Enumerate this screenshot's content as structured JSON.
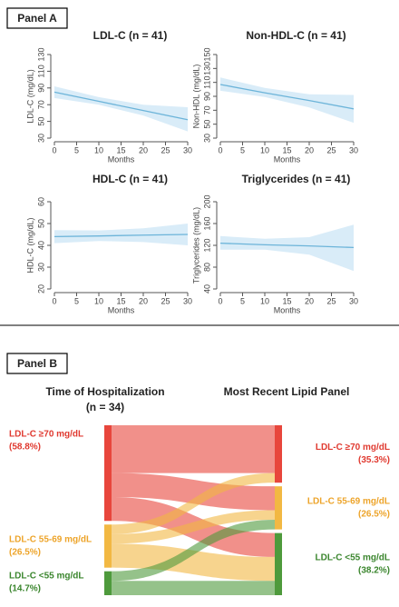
{
  "panels": [
    "Panel A",
    "Panel B"
  ],
  "chart_data": [
    {
      "type": "line",
      "title": "LDL-C (n = 41)",
      "x_label": "Months",
      "y_label": "LDL-C (mg/dL)",
      "x": [
        0,
        10,
        20,
        30
      ],
      "values": [
        85,
        74,
        63,
        52
      ],
      "lower": [
        78,
        70,
        57,
        38
      ],
      "upper": [
        92,
        79,
        70,
        67
      ],
      "xlim": [
        0,
        30
      ],
      "xticks": [
        0,
        5,
        10,
        15,
        20,
        25,
        30
      ],
      "ylim": [
        30,
        130
      ],
      "yticks": [
        30,
        50,
        70,
        90,
        110,
        130
      ],
      "color": "#6cb4d9",
      "band_color": "#d9ecf8"
    },
    {
      "type": "line",
      "title": "Non-HDL-C (n = 41)",
      "x_label": "Months",
      "y_label": "Non-HDL (mg/dL)",
      "x": [
        0,
        10,
        20,
        30
      ],
      "values": [
        107,
        95,
        84,
        72
      ],
      "lower": [
        98,
        89,
        74,
        52
      ],
      "upper": [
        117,
        102,
        93,
        92
      ],
      "xlim": [
        0,
        30
      ],
      "xticks": [
        0,
        5,
        10,
        15,
        20,
        25,
        30
      ],
      "ylim": [
        30,
        150
      ],
      "yticks": [
        30,
        50,
        70,
        90,
        110,
        130,
        150
      ],
      "color": "#6cb4d9",
      "band_color": "#d9ecf8"
    },
    {
      "type": "line",
      "title": "HDL-C (n = 41)",
      "x_label": "Months",
      "y_label": "HDL-C (mg/dL)",
      "x": [
        0,
        10,
        20,
        30
      ],
      "values": [
        44,
        44.3,
        44.7,
        45
      ],
      "lower": [
        41,
        42,
        41.5,
        40
      ],
      "upper": [
        47,
        46.8,
        47.8,
        50
      ],
      "xlim": [
        0,
        30
      ],
      "xticks": [
        0,
        5,
        10,
        15,
        20,
        25,
        30
      ],
      "ylim": [
        20,
        60
      ],
      "yticks": [
        20,
        30,
        40,
        50,
        60
      ],
      "color": "#6cb4d9",
      "band_color": "#d9ecf8"
    },
    {
      "type": "line",
      "title": "Triglycerides (n = 41)",
      "x_label": "Months",
      "y_label": "Triglycerides (mg/dL)",
      "x": [
        0,
        10,
        20,
        30
      ],
      "values": [
        124,
        121,
        119,
        116
      ],
      "lower": [
        112,
        112,
        103,
        73
      ],
      "upper": [
        137,
        132,
        135,
        158
      ],
      "xlim": [
        0,
        30
      ],
      "xticks": [
        0,
        5,
        10,
        15,
        20,
        25,
        30
      ],
      "ylim": [
        40,
        200
      ],
      "yticks": [
        40,
        80,
        120,
        160,
        200
      ],
      "color": "#6cb4d9",
      "band_color": "#d9ecf8"
    },
    {
      "type": "sankey",
      "left_title": "Time of Hospitalization",
      "left_subtitle": "(n = 34)",
      "right_title": "Most Recent Lipid Panel",
      "left_nodes": {
        "labels": [
          "LDL-C ≥70 mg/dL",
          "LDL-C 55-69 mg/dL",
          "LDL-C <55 mg/dL"
        ],
        "values": [
          58.8,
          26.5,
          14.7
        ],
        "value_labels": [
          "(58.8%)",
          "(26.5%)",
          "(14.7%)"
        ],
        "colors": [
          "#e8463c",
          "#f2b843",
          "#4e9a3c"
        ]
      },
      "right_nodes": {
        "labels": [
          "LDL-C ≥70 mg/dL",
          "LDL-C 55-69 mg/dL",
          "LDL-C <55 mg/dL"
        ],
        "values": [
          35.3,
          26.5,
          38.2
        ],
        "value_labels": [
          "(35.3%)",
          "(26.5%)",
          "(38.2%)"
        ],
        "colors": [
          "#e8463c",
          "#f2b843",
          "#4e9a3c"
        ]
      },
      "label_colors": [
        "#e03a30",
        "#eda42a",
        "#3b862e"
      ],
      "flows": {
        "source": [
          0,
          0,
          0,
          1,
          1,
          1,
          2,
          2
        ],
        "target": [
          0,
          1,
          2,
          0,
          1,
          2,
          1,
          2
        ],
        "values": [
          29.4,
          14.7,
          14.7,
          5.9,
          5.9,
          14.7,
          5.9,
          8.8
        ]
      }
    }
  ]
}
